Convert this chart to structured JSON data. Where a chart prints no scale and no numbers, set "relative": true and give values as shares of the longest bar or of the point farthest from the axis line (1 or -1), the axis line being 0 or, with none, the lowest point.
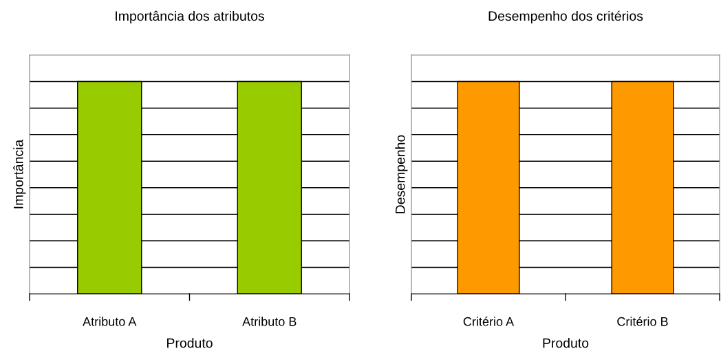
{
  "chart_data": [
    {
      "type": "bar",
      "title": "Importância dos atributos",
      "xlabel": "Produto",
      "ylabel": "Importância",
      "categories": [
        "Atributo A",
        "Atributo B"
      ],
      "values": [
        1,
        1
      ],
      "color": "#99cc00",
      "relative": true,
      "grid": "y",
      "legend": false
    },
    {
      "type": "bar",
      "title": "Desempenho dos critérios",
      "xlabel": "Produto",
      "ylabel": "Desempenho",
      "categories": [
        "Critério A",
        "Critério B"
      ],
      "values": [
        1,
        1
      ],
      "color": "#ff9900",
      "relative": true,
      "grid": "y",
      "legend": false
    }
  ]
}
